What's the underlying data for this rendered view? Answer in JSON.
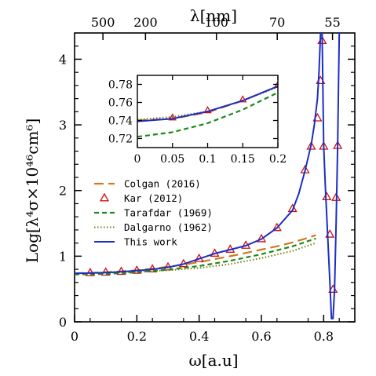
{
  "chart_data": {
    "type": "line",
    "xlabel": "ω[a.u]",
    "ylabel": "Log[λ⁴σ×10⁴⁶cm⁶]",
    "top_xlabel": "λ[nm]",
    "xlim": [
      0,
      0.9
    ],
    "ylim": [
      0,
      4.4
    ],
    "x_ticks": [
      0,
      0.2,
      0.4,
      0.6,
      0.8
    ],
    "x_tick_labels": [
      "0",
      "0.2",
      "0.4",
      "0.6",
      "0.8"
    ],
    "y_ticks": [
      0,
      1,
      2,
      3,
      4
    ],
    "y_tick_labels": [
      "0",
      "1",
      "2",
      "3",
      "4"
    ],
    "top_ticks": [
      {
        "label": "500",
        "omega": 0.0911
      },
      {
        "label": "200",
        "omega": 0.2278
      },
      {
        "label": "100",
        "omega": 0.4556
      },
      {
        "label": "70",
        "omega": 0.6509
      },
      {
        "label": "55",
        "omega": 0.8284
      }
    ],
    "legend_position": "center-left",
    "grid": false,
    "series": [
      {
        "name": "Colgan (2016)",
        "style": "long-dash",
        "color": "#d2781e",
        "x": [
          0.0,
          0.05,
          0.1,
          0.15,
          0.2,
          0.25,
          0.3,
          0.35,
          0.4,
          0.45,
          0.5,
          0.55,
          0.6,
          0.65,
          0.7,
          0.75,
          0.775
        ],
        "y": [
          0.74,
          0.745,
          0.755,
          0.77,
          0.785,
          0.81,
          0.84,
          0.87,
          0.91,
          0.955,
          1.0,
          1.05,
          1.1,
          1.15,
          1.21,
          1.28,
          1.32
        ]
      },
      {
        "name": "Kar (2012)",
        "style": "triangle-markers",
        "color": "#cc1010",
        "x": [
          0.05,
          0.1,
          0.15,
          0.2,
          0.25,
          0.3,
          0.35,
          0.4,
          0.45,
          0.5,
          0.55,
          0.6,
          0.65,
          0.7,
          0.74,
          0.76,
          0.78,
          0.79,
          0.795,
          0.8,
          0.81,
          0.82,
          0.83,
          0.84,
          0.845
        ],
        "y": [
          0.743,
          0.751,
          0.763,
          0.78,
          0.8,
          0.83,
          0.88,
          0.96,
          1.04,
          1.1,
          1.16,
          1.26,
          1.43,
          1.72,
          2.31,
          2.67,
          3.1,
          3.67,
          4.28,
          2.67,
          1.9,
          1.33,
          0.49,
          1.89,
          2.68
        ]
      },
      {
        "name": "Tarafdar (1969)",
        "style": "short-dash",
        "color": "#1a8a1a",
        "x": [
          0.0,
          0.1,
          0.2,
          0.3,
          0.4,
          0.5,
          0.6,
          0.7,
          0.775
        ],
        "y": [
          0.722,
          0.73,
          0.755,
          0.795,
          0.85,
          0.93,
          1.03,
          1.15,
          1.27
        ]
      },
      {
        "name": "Dalgarno (1962)",
        "style": "dotted",
        "color": "#7a7a10",
        "x": [
          0.0,
          0.1,
          0.2,
          0.3,
          0.4,
          0.5,
          0.6,
          0.7,
          0.775
        ],
        "y": [
          0.74,
          0.745,
          0.76,
          0.785,
          0.82,
          0.88,
          0.97,
          1.08,
          1.2
        ]
      },
      {
        "name": "This work",
        "style": "solid",
        "color": "#1c2ec2",
        "x": [
          0.0,
          0.05,
          0.1,
          0.15,
          0.2,
          0.25,
          0.3,
          0.35,
          0.4,
          0.45,
          0.5,
          0.55,
          0.6,
          0.65,
          0.7,
          0.72,
          0.74,
          0.76,
          0.77,
          0.78,
          0.785,
          0.79,
          0.795,
          0.8,
          0.805,
          0.81,
          0.815,
          0.82,
          0.825,
          0.83,
          0.835,
          0.84,
          0.845,
          0.85,
          0.855
        ],
        "y": [
          0.739,
          0.743,
          0.751,
          0.763,
          0.78,
          0.8,
          0.83,
          0.88,
          0.96,
          1.04,
          1.1,
          1.16,
          1.26,
          1.43,
          1.7,
          1.95,
          2.3,
          2.7,
          3.0,
          3.4,
          3.8,
          4.4,
          4.4,
          2.7,
          2.1,
          1.6,
          1.1,
          0.6,
          0.05,
          0.05,
          0.5,
          1.5,
          2.7,
          4.4,
          4.4
        ]
      }
    ],
    "inset": {
      "xlim": [
        0,
        0.2
      ],
      "ylim": [
        0.71,
        0.79
      ],
      "x_ticks": [
        0,
        0.05,
        0.1,
        0.15,
        0.2
      ],
      "x_tick_labels": [
        "0",
        "0.05",
        "0.1",
        "0.15",
        "0.2"
      ],
      "y_ticks": [
        0.72,
        0.74,
        0.76,
        0.78
      ],
      "y_tick_labels": [
        "0.72",
        "0.74",
        "0.76",
        "0.78"
      ],
      "series": [
        {
          "name": "Colgan (2016)",
          "x": [
            0.0,
            0.05,
            0.1,
            0.15,
            0.2
          ],
          "y": [
            0.74,
            0.742,
            0.749,
            0.762,
            0.778
          ]
        },
        {
          "name": "Kar (2012)",
          "x": [
            0.05,
            0.1,
            0.15,
            0.2
          ],
          "y": [
            0.743,
            0.751,
            0.763,
            0.779
          ]
        },
        {
          "name": "Tarafdar (1969)",
          "x": [
            0.0,
            0.05,
            0.1,
            0.15,
            0.2
          ],
          "y": [
            0.722,
            0.727,
            0.737,
            0.752,
            0.771
          ]
        },
        {
          "name": "Dalgarno (1962)",
          "x": [
            0.0,
            0.05,
            0.1,
            0.15,
            0.2
          ],
          "y": [
            0.741,
            0.744,
            0.75,
            0.762,
            0.777
          ]
        },
        {
          "name": "This work",
          "x": [
            0.0,
            0.05,
            0.1,
            0.15,
            0.2
          ],
          "y": [
            0.739,
            0.742,
            0.75,
            0.762,
            0.778
          ]
        }
      ]
    }
  }
}
